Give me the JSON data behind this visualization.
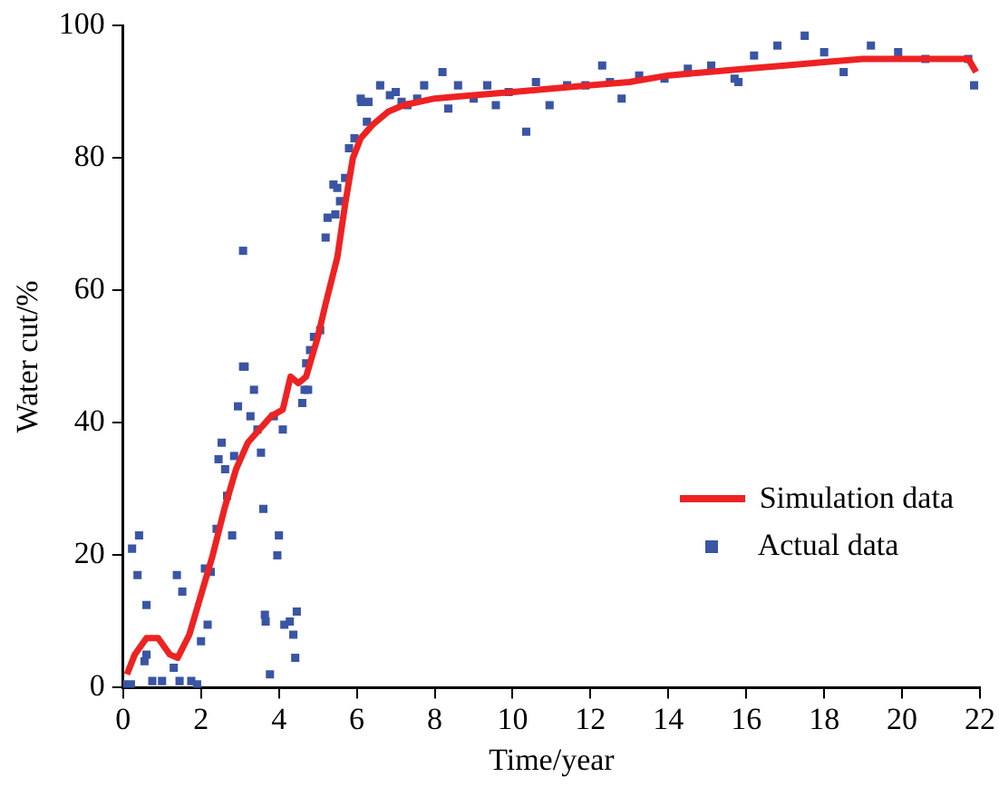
{
  "chart_data": {
    "type": "line",
    "xlabel": "Time/year",
    "ylabel": "Water cut/%",
    "xlim": [
      0,
      22
    ],
    "xticks": [
      0,
      2,
      4,
      6,
      8,
      10,
      12,
      14,
      16,
      18,
      20,
      22
    ],
    "ylim": [
      0,
      100
    ],
    "yticks": [
      0,
      20,
      40,
      60,
      80,
      100
    ],
    "grid": false,
    "legend": "right",
    "series": [
      {
        "name": "Simulation data",
        "color": "#ee2222",
        "marker": "none",
        "line_style": "solid",
        "x": [
          0.1,
          0.3,
          0.6,
          0.9,
          1.2,
          1.4,
          1.7,
          2.0,
          2.3,
          2.6,
          2.9,
          3.2,
          3.5,
          3.8,
          4.1,
          4.3,
          4.5,
          4.7,
          5.0,
          5.2,
          5.5,
          5.7,
          5.9,
          6.1,
          6.4,
          6.8,
          7.2,
          8,
          9,
          10,
          11,
          12,
          13,
          14,
          15,
          16,
          17,
          18,
          19,
          20,
          21,
          21.7,
          21.9
        ],
        "values": [
          2,
          5,
          7.5,
          7.5,
          5,
          4.5,
          8,
          14,
          20,
          27,
          33,
          37,
          39,
          41,
          42,
          47,
          46,
          47,
          53,
          58,
          65,
          73,
          80,
          83,
          85,
          87,
          88,
          89,
          89.5,
          90,
          90.5,
          91,
          91.5,
          92.5,
          93,
          93.5,
          94,
          94.5,
          95,
          95,
          95,
          95,
          93
        ]
      },
      {
        "name": "Actual data",
        "type": "scatter",
        "color": "#3a55a4",
        "marker": "square",
        "x": [
          0,
          0.2,
          0.23,
          0.41,
          0.37,
          0.6,
          0.55,
          0.6,
          0.75,
          1.0,
          1.38,
          1.52,
          1.3,
          1.45,
          1.75,
          1.9,
          2.0,
          2.17,
          2.1,
          2.25,
          2.4,
          2.8,
          2.67,
          2.62,
          2.45,
          2.53,
          2.85,
          2.95,
          3.08,
          3.12,
          3.08,
          3.36,
          3.27,
          3.45,
          3.54,
          3.6,
          3.77,
          3.64,
          3.66,
          3.96,
          4.0,
          3.87,
          4.1,
          4.14,
          4.28,
          4.37,
          4.46,
          4.42,
          4.6,
          4.66,
          4.75,
          4.7,
          4.8,
          4.9,
          5.06,
          5.2,
          5.25,
          5.45,
          5.57,
          5.4,
          5.5,
          5.7,
          5.8,
          5.94,
          6.26,
          6.1,
          6.12,
          6.3,
          6.6,
          6.85,
          7.0,
          7.15,
          7.3,
          7.55,
          7.73,
          8.2,
          8.35,
          8.6,
          9.0,
          9.35,
          9.57,
          9.9,
          10.35,
          10.6,
          10.95,
          11.4,
          11.87,
          12.3,
          12.5,
          12.8,
          13.25,
          13.9,
          14.5,
          15.1,
          15.7,
          15.8,
          16.2,
          16.8,
          17.5,
          18.0,
          18.5,
          19.2,
          19.9,
          20.6,
          21.7,
          21.85
        ],
        "values": [
          0.5,
          0.5,
          21,
          23,
          17,
          12.5,
          4,
          5,
          1,
          1,
          17,
          14.5,
          3,
          1,
          1,
          0.5,
          7,
          9.5,
          18,
          17.5,
          24,
          23,
          29,
          33,
          34.5,
          37,
          35,
          42.5,
          48.5,
          48.5,
          66,
          45,
          41,
          39,
          35.5,
          27,
          2,
          11,
          10,
          20,
          23,
          41,
          39,
          9.5,
          10,
          8,
          11.5,
          4.5,
          43,
          45,
          45,
          49,
          51,
          53,
          54,
          68,
          71,
          71.5,
          73.5,
          76,
          75.5,
          77,
          81.5,
          83,
          85.5,
          89,
          88.5,
          88.5,
          91,
          89.5,
          90,
          88.5,
          88,
          89,
          91,
          93,
          87.5,
          91,
          89,
          91,
          88,
          90,
          84,
          91.5,
          88,
          91,
          91,
          94,
          91.5,
          89,
          92.5,
          92,
          93.5,
          94,
          92,
          91.5,
          95.5,
          97,
          98.5,
          96,
          93,
          97,
          96,
          95,
          95,
          91
        ]
      }
    ]
  }
}
